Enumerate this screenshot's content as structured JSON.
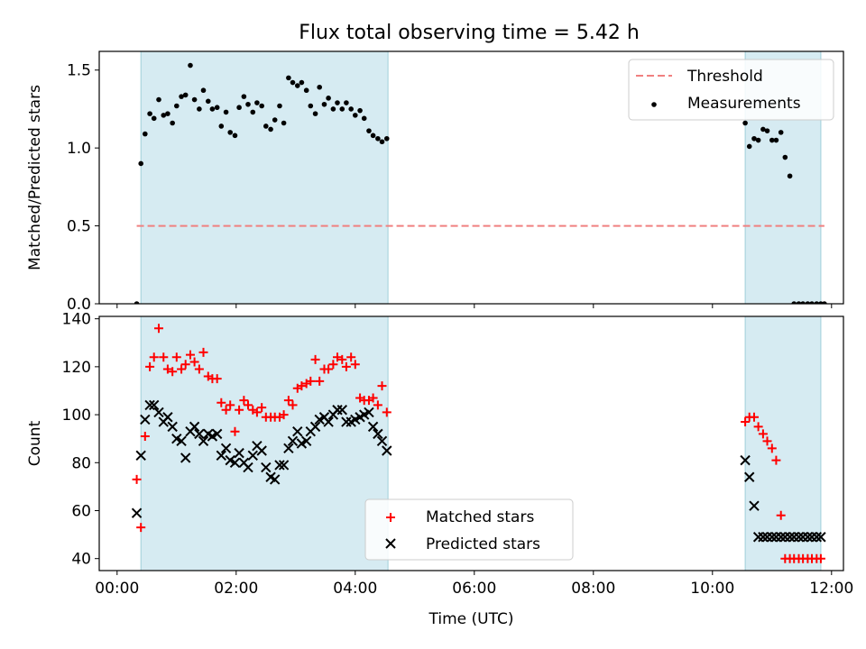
{
  "chart_data": [
    {
      "type": "scatter",
      "title": "Flux total observing time = 5.42 h",
      "xlabel": "",
      "ylabel": "Matched/Predicted stars",
      "xlim": [
        -0.3,
        12.2
      ],
      "ylim": [
        0,
        1.62
      ],
      "yticks": [
        0.0,
        0.5,
        1.0,
        1.5
      ],
      "ytick_labels": [
        "0.0",
        "0.5",
        "1.0",
        "1.5"
      ],
      "legend_position": "top-right",
      "shaded_intervals": [
        [
          0.4,
          4.55
        ],
        [
          10.55,
          11.82
        ]
      ],
      "threshold": {
        "name": "Threshold",
        "value": 0.5,
        "x_range": [
          0.33,
          11.88
        ],
        "color": "#f08080"
      },
      "series": [
        {
          "name": "Measurements",
          "marker": "dot",
          "color": "#000000",
          "x": [
            0.33,
            0.4,
            0.47,
            0.55,
            0.62,
            0.7,
            0.78,
            0.85,
            0.93,
            1.0,
            1.08,
            1.15,
            1.23,
            1.3,
            1.38,
            1.45,
            1.53,
            1.6,
            1.68,
            1.75,
            1.83,
            1.9,
            1.98,
            2.05,
            2.13,
            2.2,
            2.28,
            2.35,
            2.43,
            2.5,
            2.58,
            2.65,
            2.73,
            2.8,
            2.88,
            2.95,
            3.03,
            3.1,
            3.18,
            3.25,
            3.33,
            3.4,
            3.48,
            3.55,
            3.63,
            3.7,
            3.78,
            3.85,
            3.93,
            4.0,
            4.08,
            4.15,
            4.23,
            4.3,
            4.38,
            4.45,
            4.53,
            10.55,
            10.62,
            10.7,
            10.77,
            10.85,
            10.92,
            11.0,
            11.07,
            11.15,
            11.22,
            11.3,
            11.37,
            11.45,
            11.52,
            11.6,
            11.67,
            11.75,
            11.82,
            11.88
          ],
          "y": [
            0.0,
            0.9,
            1.09,
            1.22,
            1.19,
            1.31,
            1.21,
            1.22,
            1.16,
            1.27,
            1.33,
            1.34,
            1.53,
            1.31,
            1.25,
            1.37,
            1.3,
            1.25,
            1.26,
            1.14,
            1.23,
            1.1,
            1.08,
            1.26,
            1.33,
            1.28,
            1.23,
            1.29,
            1.27,
            1.14,
            1.12,
            1.18,
            1.27,
            1.16,
            1.45,
            1.42,
            1.4,
            1.42,
            1.37,
            1.27,
            1.22,
            1.39,
            1.28,
            1.32,
            1.25,
            1.29,
            1.25,
            1.29,
            1.25,
            1.21,
            1.24,
            1.19,
            1.11,
            1.08,
            1.06,
            1.04,
            1.06,
            1.16,
            1.01,
            1.06,
            1.05,
            1.12,
            1.11,
            1.05,
            1.05,
            1.1,
            0.94,
            0.82,
            0.0,
            0.0,
            0.0,
            0.0,
            0.0,
            0.0,
            0.0,
            0.0
          ]
        }
      ]
    },
    {
      "type": "scatter",
      "title": "",
      "xlabel": "Time (UTC)",
      "ylabel": "Count",
      "xlim": [
        -0.3,
        12.2
      ],
      "ylim": [
        35,
        141
      ],
      "yticks": [
        40,
        60,
        80,
        100,
        120,
        140
      ],
      "ytick_labels": [
        "40",
        "60",
        "80",
        "100",
        "120",
        "140"
      ],
      "xticks": [
        0,
        2,
        4,
        6,
        8,
        10,
        12
      ],
      "xtick_labels": [
        "00:00",
        "02:00",
        "04:00",
        "06:00",
        "08:00",
        "10:00",
        "12:00"
      ],
      "legend_position": "bottom-center",
      "shaded_intervals": [
        [
          0.4,
          4.55
        ],
        [
          10.55,
          11.82
        ]
      ],
      "series": [
        {
          "name": "Matched stars",
          "marker": "plus",
          "color": "#ff0000",
          "x": [
            0.33,
            0.4,
            0.47,
            0.55,
            0.62,
            0.7,
            0.78,
            0.85,
            0.93,
            1.0,
            1.08,
            1.15,
            1.23,
            1.3,
            1.38,
            1.45,
            1.53,
            1.6,
            1.68,
            1.75,
            1.83,
            1.9,
            1.98,
            2.05,
            2.13,
            2.2,
            2.28,
            2.35,
            2.43,
            2.5,
            2.58,
            2.65,
            2.73,
            2.8,
            2.88,
            2.95,
            3.03,
            3.1,
            3.18,
            3.25,
            3.33,
            3.4,
            3.48,
            3.55,
            3.63,
            3.7,
            3.78,
            3.85,
            3.93,
            4.0,
            4.08,
            4.15,
            4.23,
            4.3,
            4.38,
            4.45,
            4.53,
            10.55,
            10.62,
            10.7,
            10.77,
            10.85,
            10.92,
            11.0,
            11.07,
            11.15,
            11.22,
            11.3,
            11.37,
            11.45,
            11.52,
            11.6,
            11.67,
            11.75,
            11.82
          ],
          "y": [
            73,
            53,
            91,
            120,
            124,
            136,
            124,
            119,
            118,
            124,
            119,
            121,
            125,
            122,
            119,
            126,
            116,
            115,
            115,
            105,
            102,
            104,
            93,
            102,
            106,
            104,
            102,
            101,
            103,
            99,
            99,
            99,
            99,
            100,
            106,
            104,
            111,
            112,
            113,
            114,
            123,
            114,
            119,
            119,
            121,
            124,
            123,
            120,
            124,
            121,
            107,
            106,
            106,
            107,
            104,
            112,
            101,
            97,
            99,
            99,
            95,
            92,
            89,
            86,
            81,
            58,
            40,
            40,
            40,
            40,
            40,
            40,
            40,
            40,
            40
          ]
        },
        {
          "name": "Predicted stars",
          "marker": "x",
          "color": "#000000",
          "x": [
            0.33,
            0.4,
            0.47,
            0.55,
            0.62,
            0.7,
            0.78,
            0.85,
            0.93,
            1.0,
            1.08,
            1.15,
            1.23,
            1.3,
            1.38,
            1.45,
            1.53,
            1.6,
            1.68,
            1.75,
            1.83,
            1.9,
            1.98,
            2.05,
            2.13,
            2.2,
            2.28,
            2.35,
            2.43,
            2.5,
            2.58,
            2.65,
            2.73,
            2.8,
            2.88,
            2.95,
            3.03,
            3.1,
            3.18,
            3.25,
            3.33,
            3.4,
            3.48,
            3.55,
            3.63,
            3.7,
            3.78,
            3.85,
            3.93,
            4.0,
            4.08,
            4.15,
            4.23,
            4.3,
            4.38,
            4.45,
            4.53,
            10.55,
            10.62,
            10.7,
            10.77,
            10.85,
            10.92,
            11.0,
            11.07,
            11.15,
            11.22,
            11.3,
            11.37,
            11.45,
            11.52,
            11.6,
            11.67,
            11.75,
            11.82
          ],
          "y": [
            59,
            83,
            98,
            104,
            104,
            101,
            97,
            99,
            95,
            90,
            89,
            82,
            93,
            95,
            92,
            89,
            92,
            91,
            92,
            83,
            86,
            81,
            80,
            84,
            80,
            78,
            83,
            87,
            85,
            78,
            74,
            73,
            79,
            79,
            86,
            89,
            93,
            88,
            89,
            93,
            95,
            98,
            99,
            97,
            100,
            102,
            102,
            97,
            97,
            98,
            99,
            100,
            101,
            95,
            92,
            89,
            85,
            81,
            74,
            62,
            49,
            49,
            49,
            49,
            49,
            49,
            49,
            49,
            49,
            49,
            49,
            49,
            49,
            49,
            49
          ]
        }
      ]
    }
  ]
}
